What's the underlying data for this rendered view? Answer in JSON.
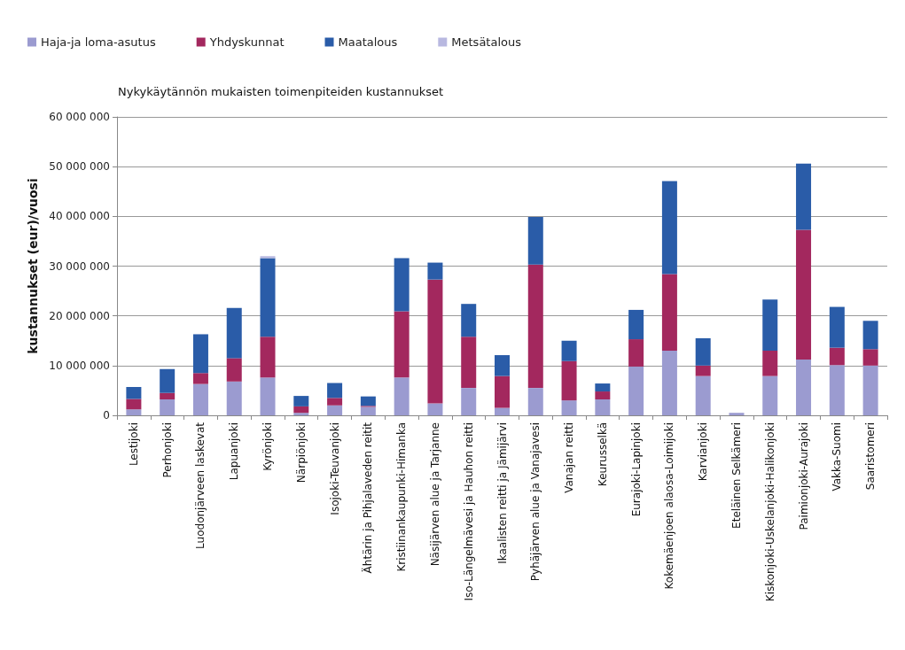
{
  "chart_data": {
    "type": "bar",
    "stacked": true,
    "title": "Nykykäytännön mukaisten toimenpiteiden kustannukset",
    "ylabel": "kustannukset (eur)/vuosi",
    "categories": [
      "Lestijoki",
      "Perhonjoki",
      "Luodonjärveen laskevat",
      "Lapuanjoki",
      "Kyrönjoki",
      "Närpiönjoki",
      "Isojoki-Teuvanjoki",
      "Ähtärin ja Pihjalaveden reitit",
      "Kristiinankaupunki-Himanka",
      "Näsijärven alue ja Tarjanne",
      "Iso-Längelmävesi ja Hauhon reitti",
      "Ikaalisten reitti ja Jämijärvi",
      "Pyhäjärven alue ja Vanajavesi",
      "Vanajan reitti",
      "Keurusselkä",
      "Eurajoki-Lapinjoki",
      "Kokemäenjoen alaosa-Loimijoki",
      "Karvianjoki",
      "Eteläinen Selkämeri",
      "Kiskonjoki-Uskelanjoki-Halikonjoki",
      "Paimionjoki-Aurajoki",
      "Vakka-Suomi",
      "Saaristomeri"
    ],
    "series": [
      {
        "name": "Haja-ja loma-asutus",
        "color": "#9b9bd0",
        "values": [
          1200000,
          3200000,
          6300000,
          6800000,
          7600000,
          500000,
          2000000,
          1700000,
          7600000,
          2400000,
          5500000,
          1500000,
          5500000,
          3000000,
          3200000,
          9800000,
          13000000,
          7900000,
          500000,
          7900000,
          11200000,
          10100000,
          10000000
        ]
      },
      {
        "name": "Yhdyskunnat",
        "color": "#a3285e",
        "values": [
          2100000,
          1300000,
          2200000,
          4700000,
          8200000,
          1300000,
          1500000,
          200000,
          13300000,
          24900000,
          10300000,
          6400000,
          24800000,
          7900000,
          1600000,
          5500000,
          15400000,
          2100000,
          null,
          5100000,
          26100000,
          3500000,
          3300000
        ]
      },
      {
        "name": "Maatalous",
        "color": "#2a5ca8",
        "values": [
          2400000,
          4800000,
          7800000,
          10100000,
          15800000,
          2100000,
          3000000,
          1900000,
          10700000,
          3400000,
          6600000,
          4200000,
          9600000,
          4100000,
          1600000,
          5900000,
          18700000,
          5500000,
          null,
          10300000,
          13300000,
          8200000,
          5700000
        ]
      },
      {
        "name": "Metsätalous",
        "color": "#b8b8e0",
        "values": [
          null,
          null,
          null,
          null,
          400000,
          null,
          null,
          null,
          null,
          null,
          null,
          null,
          null,
          null,
          null,
          null,
          null,
          null,
          null,
          null,
          null,
          null,
          null
        ]
      }
    ],
    "ylim": [
      0,
      60000000
    ],
    "yticks": [
      {
        "value": 0,
        "label": "0"
      },
      {
        "value": 10000000,
        "label": "10 000 000"
      },
      {
        "value": 20000000,
        "label": "20 000 000"
      },
      {
        "value": 30000000,
        "label": "30 000 000"
      },
      {
        "value": 40000000,
        "label": "40 000 000"
      },
      {
        "value": 50000000,
        "label": "50 000 000"
      },
      {
        "value": 60000000,
        "label": "60 000 000"
      }
    ],
    "grid": "y",
    "legend": "top left"
  }
}
